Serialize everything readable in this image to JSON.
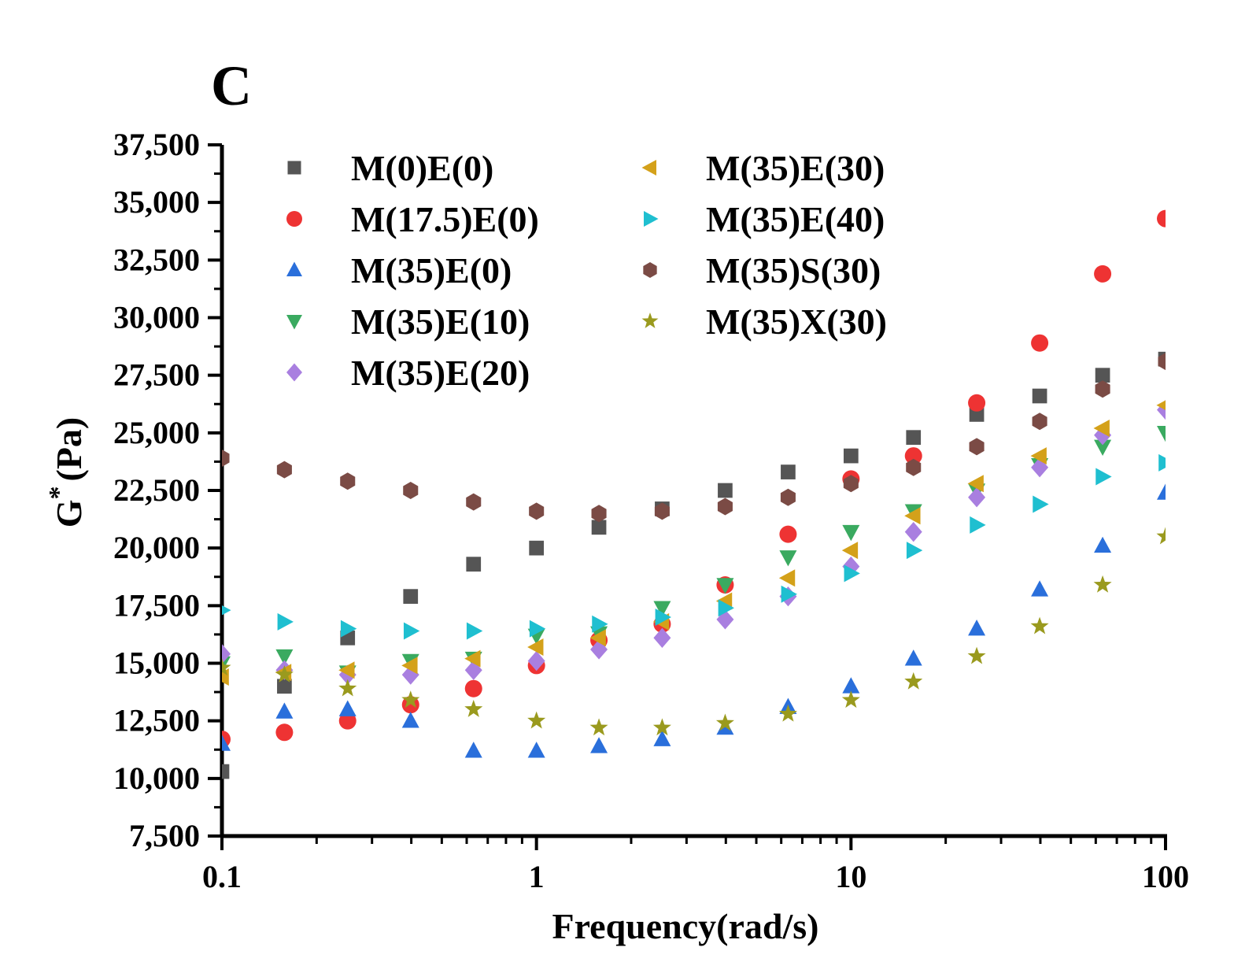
{
  "chart_data": {
    "type": "scatter",
    "panel_label": "C",
    "xlabel": "Frequency(rad/s)",
    "ylabel": "G",
    "ylabel_sup": "*",
    "ylabel_unit": "(Pa)",
    "xscale": "log",
    "xlim": [
      0.1,
      100
    ],
    "ylim": [
      7500,
      37500
    ],
    "x_ticks": [
      0.1,
      1,
      10,
      100
    ],
    "x_tick_labels": [
      "0.1",
      "1",
      "10",
      "100"
    ],
    "y_ticks": [
      7500,
      10000,
      12500,
      15000,
      17500,
      20000,
      22500,
      25000,
      27500,
      30000,
      32500,
      35000,
      37500
    ],
    "y_tick_labels": [
      "7,500",
      "10,000",
      "12,500",
      "15,000",
      "17,500",
      "20,000",
      "22,500",
      "25,000",
      "27,500",
      "30,000",
      "32,500",
      "35,000",
      "37,500"
    ],
    "x": [
      0.1,
      0.158,
      0.251,
      0.398,
      0.631,
      1,
      1.58,
      2.51,
      3.98,
      6.31,
      10,
      15.8,
      25.1,
      39.8,
      63.1,
      100
    ],
    "legend_position": "top-left",
    "series": [
      {
        "name": "M(0)E(0)",
        "marker": "square",
        "color": "#555555",
        "values": [
          10300,
          14000,
          16100,
          17900,
          19300,
          20000,
          20900,
          21700,
          22500,
          23300,
          24000,
          24800,
          25800,
          26600,
          27500,
          28200
        ]
      },
      {
        "name": "M(17.5)E(0)",
        "marker": "circle",
        "color": "#ee3333",
        "values": [
          11700,
          12000,
          12500,
          13200,
          13900,
          14900,
          16000,
          16700,
          18400,
          20600,
          23000,
          24000,
          26300,
          28900,
          31900,
          34300
        ]
      },
      {
        "name": "M(35)E(0)",
        "marker": "triangle-up",
        "color": "#2a6fdb",
        "values": [
          11500,
          12900,
          13000,
          12500,
          11200,
          11200,
          11400,
          11700,
          12200,
          13100,
          14000,
          15200,
          16500,
          18200,
          20100,
          22400
        ]
      },
      {
        "name": "M(35)E(10)",
        "marker": "triangle-down",
        "color": "#3aaa60",
        "values": [
          15000,
          15300,
          14600,
          15100,
          15200,
          16200,
          16300,
          17400,
          18400,
          19600,
          20700,
          21600,
          22500,
          23600,
          24400,
          25000
        ]
      },
      {
        "name": "M(35)E(20)",
        "marker": "diamond",
        "color": "#a97fe0",
        "values": [
          15400,
          14700,
          14500,
          14500,
          14700,
          15100,
          15600,
          16100,
          16900,
          17900,
          19200,
          20700,
          22200,
          23500,
          24900,
          26000
        ]
      },
      {
        "name": "M(35)E(30)",
        "marker": "triangle-left",
        "color": "#d4a11a",
        "values": [
          14400,
          14600,
          14700,
          14900,
          15200,
          15700,
          16100,
          16800,
          17700,
          18700,
          19900,
          21400,
          22800,
          24000,
          25200,
          26200
        ]
      },
      {
        "name": "M(35)E(40)",
        "marker": "triangle-right",
        "color": "#1fbfd0",
        "values": [
          17300,
          16800,
          16500,
          16400,
          16400,
          16500,
          16700,
          17000,
          17400,
          18000,
          18900,
          19900,
          21000,
          21900,
          23100,
          23700
        ]
      },
      {
        "name": "M(35)S(30)",
        "marker": "hexagon",
        "color": "#7b4b45",
        "values": [
          23900,
          23400,
          22900,
          22500,
          22000,
          21600,
          21500,
          21600,
          21800,
          22200,
          22800,
          23500,
          24400,
          25500,
          26900,
          28100
        ]
      },
      {
        "name": "M(35)X(30)",
        "marker": "star",
        "color": "#9a9a1e",
        "values": [
          14800,
          14500,
          13900,
          13400,
          13000,
          12500,
          12200,
          12200,
          12400,
          12800,
          13400,
          14200,
          15300,
          16600,
          18400,
          20500
        ]
      }
    ]
  }
}
